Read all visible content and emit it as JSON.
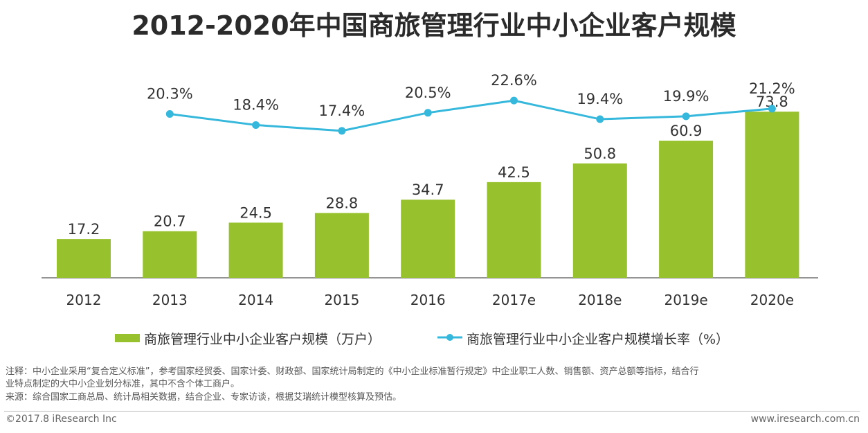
{
  "chart_data": {
    "type": "bar",
    "title": "2012-2020年中国商旅管理行业中小企业客户规模",
    "categories": [
      "2012",
      "2013",
      "2014",
      "2015",
      "2016",
      "2017e",
      "2018e",
      "2019e",
      "2020e"
    ],
    "series": [
      {
        "name": "商旅管理行业中小企业客户规模（万户）",
        "type": "bar",
        "color": "#97c12d",
        "values": [
          17.2,
          20.7,
          24.5,
          28.8,
          34.7,
          42.5,
          50.8,
          60.9,
          73.8
        ],
        "labels": [
          "17.2",
          "20.7",
          "24.5",
          "28.8",
          "34.7",
          "42.5",
          "50.8",
          "60.9",
          "73.8"
        ]
      },
      {
        "name": "商旅管理行业中小企业客户规模增长率（%）",
        "type": "line",
        "color": "#35b8dc",
        "values": [
          null,
          20.3,
          18.4,
          17.4,
          20.5,
          22.6,
          19.4,
          19.9,
          21.2
        ],
        "labels": [
          "",
          "20.3%",
          "18.4%",
          "17.4%",
          "20.5%",
          "22.6%",
          "19.4%",
          "19.9%",
          "21.2%"
        ]
      }
    ],
    "xlabel": "",
    "ylabel": "",
    "ylim": [
      0,
      80
    ],
    "line_ylim": [
      0,
      25
    ],
    "legend_position": "bottom"
  },
  "notes": {
    "line1": "注释：中小企业采用“复合定义标准”，参考国家经贸委、国家计委、财政部、国家统计局制定的《中小企业标准暂行规定》中企业职工人数、销售额、资产总额等指标，结合行",
    "line2": "业特点制定的大中小企业划分标准，其中不含个体工商户。",
    "line3": "来源：综合国家工商总局、统计局相关数据，结合企业、专家访谈，根据艾瑞统计模型核算及预估。"
  },
  "footer": {
    "copyright": "©2017.8 iResearch Inc",
    "site": "www.iresearch.com.cn"
  }
}
